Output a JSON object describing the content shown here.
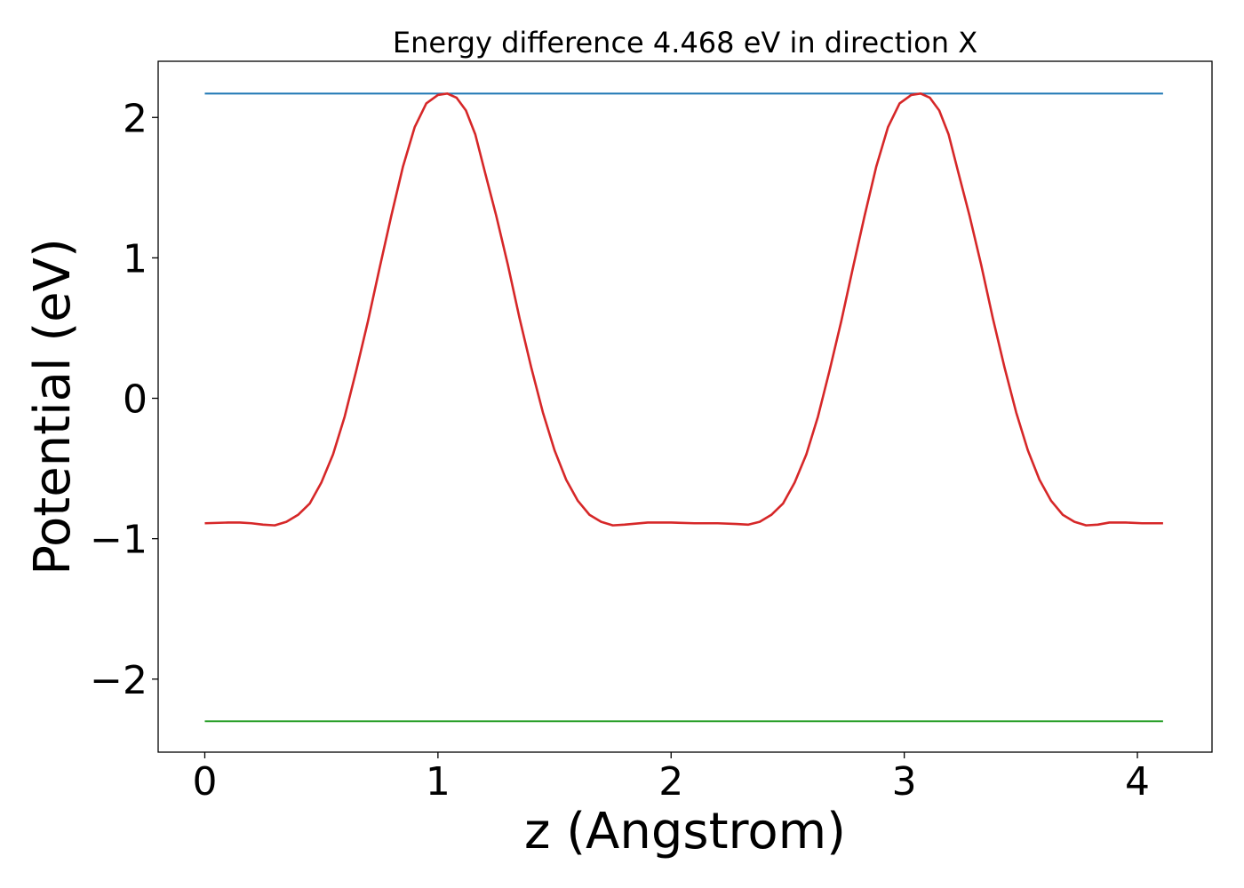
{
  "chart_data": {
    "type": "line",
    "title": "Energy difference 4.468 eV in direction X",
    "xlabel": "z (Angstrom)",
    "ylabel": "Potential (eV)",
    "xlim": [
      -0.2,
      4.32
    ],
    "ylim": [
      -2.52,
      2.4
    ],
    "xticks": [
      0,
      1,
      2,
      3,
      4
    ],
    "xtick_labels": [
      "0",
      "1",
      "2",
      "3",
      "4"
    ],
    "yticks": [
      -2,
      -1,
      0,
      1,
      2
    ],
    "ytick_labels": [
      "−2",
      "−1",
      "0",
      "1",
      "2"
    ],
    "grid": false,
    "legend": "none",
    "series": [
      {
        "color": "#1f77b4",
        "x": [
          0.0,
          4.11
        ],
        "y": [
          2.17,
          2.17
        ]
      },
      {
        "color": "#2ca02c",
        "x": [
          0.0,
          4.11
        ],
        "y": [
          -2.3,
          -2.3
        ]
      },
      {
        "color": "#d62728",
        "x": [
          0.0,
          0.1,
          0.15,
          0.2,
          0.25,
          0.3,
          0.35,
          0.4,
          0.45,
          0.5,
          0.55,
          0.6,
          0.65,
          0.7,
          0.75,
          0.8,
          0.85,
          0.9,
          0.95,
          1.0,
          1.04,
          1.08,
          1.12,
          1.16,
          1.2,
          1.25,
          1.3,
          1.35,
          1.4,
          1.45,
          1.5,
          1.55,
          1.6,
          1.65,
          1.7,
          1.75,
          1.8,
          1.9,
          2.0,
          2.1,
          2.2,
          2.28,
          2.33,
          2.38,
          2.43,
          2.48,
          2.53,
          2.58,
          2.63,
          2.68,
          2.73,
          2.78,
          2.83,
          2.88,
          2.93,
          2.98,
          3.03,
          3.07,
          3.11,
          3.15,
          3.19,
          3.23,
          3.28,
          3.33,
          3.38,
          3.43,
          3.48,
          3.53,
          3.58,
          3.63,
          3.68,
          3.73,
          3.78,
          3.83,
          3.88,
          3.95,
          4.02,
          4.11
        ],
        "y": [
          -0.89,
          -0.885,
          -0.885,
          -0.89,
          -0.9,
          -0.905,
          -0.88,
          -0.83,
          -0.75,
          -0.6,
          -0.4,
          -0.13,
          0.2,
          0.55,
          0.93,
          1.3,
          1.65,
          1.93,
          2.1,
          2.16,
          2.17,
          2.14,
          2.05,
          1.88,
          1.62,
          1.3,
          0.95,
          0.57,
          0.22,
          -0.1,
          -0.37,
          -0.58,
          -0.73,
          -0.83,
          -0.88,
          -0.905,
          -0.9,
          -0.885,
          -0.885,
          -0.89,
          -0.89,
          -0.895,
          -0.9,
          -0.88,
          -0.83,
          -0.75,
          -0.6,
          -0.4,
          -0.13,
          0.2,
          0.55,
          0.93,
          1.3,
          1.65,
          1.93,
          2.1,
          2.16,
          2.17,
          2.14,
          2.05,
          1.88,
          1.62,
          1.3,
          0.95,
          0.57,
          0.22,
          -0.1,
          -0.37,
          -0.58,
          -0.73,
          -0.83,
          -0.88,
          -0.905,
          -0.9,
          -0.885,
          -0.885,
          -0.89,
          -0.89
        ]
      }
    ]
  }
}
